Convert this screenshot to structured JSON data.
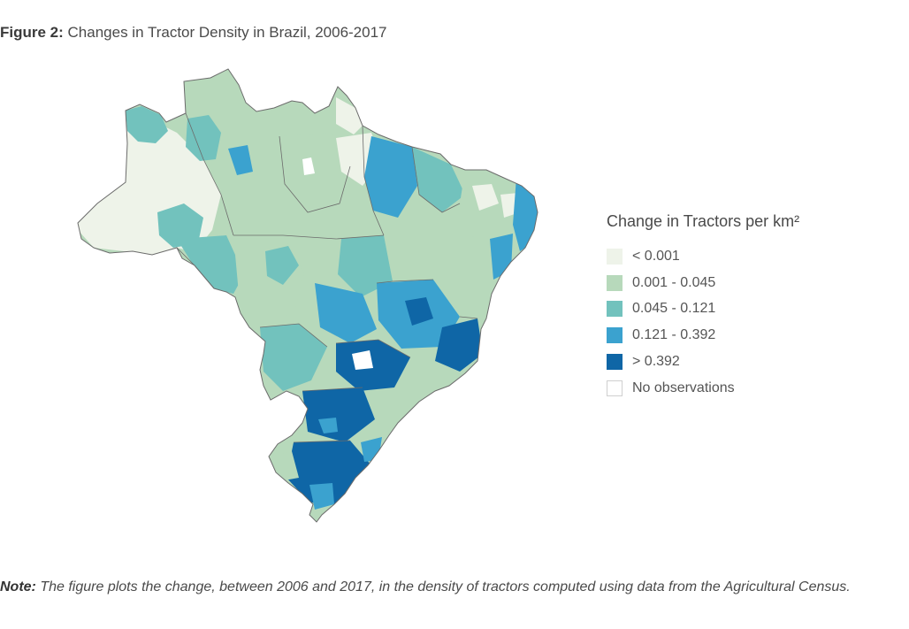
{
  "figure": {
    "label": "Figure 2:",
    "title": "Changes in Tractor Density in Brazil, 2006-2017"
  },
  "legend": {
    "title": "Change in Tractors per km²",
    "items": [
      {
        "label": "< 0.001",
        "color": "#eef3e9",
        "border": "#eef3e9"
      },
      {
        "label": "0.001 - 0.045",
        "color": "#b7d9bb",
        "border": "#b7d9bb"
      },
      {
        "label": "0.045 - 0.121",
        "color": "#72c2bd",
        "border": "#72c2bd"
      },
      {
        "label": "0.121 - 0.392",
        "color": "#3ba2cf",
        "border": "#3ba2cf"
      },
      {
        "label": "> 0.392",
        "color": "#0f66a6",
        "border": "#0f66a6"
      },
      {
        "label": "No observations",
        "color": "#ffffff",
        "border": "#cfcfcf"
      }
    ]
  },
  "note": {
    "label": "Note:",
    "text": "The figure plots the change, between 2006 and 2017, in the density of tractors computed using data from the Agricultural Census."
  }
}
